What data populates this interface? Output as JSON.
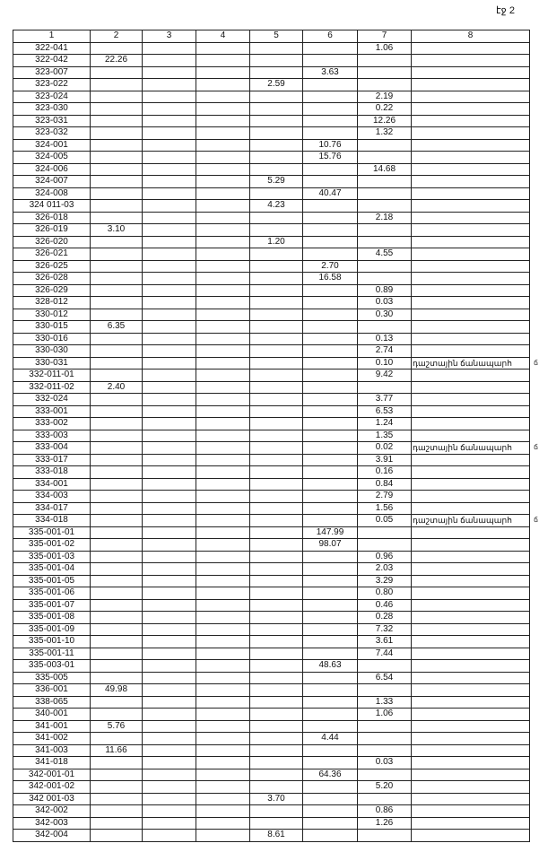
{
  "page_label": "էջ 2",
  "columns": [
    "1",
    "2",
    "3",
    "4",
    "5",
    "6",
    "7",
    "8"
  ],
  "note_text": "դաշտային ճանապարհ",
  "note_mark": "ճ",
  "rows": [
    [
      "322-041",
      "",
      "",
      "",
      "",
      "",
      "1.06",
      ""
    ],
    [
      "322-042",
      "22.26",
      "",
      "",
      "",
      "",
      "",
      ""
    ],
    [
      "323-007",
      "",
      "",
      "",
      "",
      "3.63",
      "",
      ""
    ],
    [
      "323-022",
      "",
      "",
      "",
      "2.59",
      "",
      "",
      ""
    ],
    [
      "323-024",
      "",
      "",
      "",
      "",
      "",
      "2.19",
      ""
    ],
    [
      "323-030",
      "",
      "",
      "",
      "",
      "",
      "0.22",
      ""
    ],
    [
      "323-031",
      "",
      "",
      "",
      "",
      "",
      "12.26",
      ""
    ],
    [
      "323-032",
      "",
      "",
      "",
      "",
      "",
      "1.32",
      ""
    ],
    [
      "324-001",
      "",
      "",
      "",
      "",
      "10.76",
      "",
      ""
    ],
    [
      "324-005",
      "",
      "",
      "",
      "",
      "15.76",
      "",
      ""
    ],
    [
      "324-006",
      "",
      "",
      "",
      "",
      "",
      "14.68",
      ""
    ],
    [
      "324-007",
      "",
      "",
      "",
      "5.29",
      "",
      "",
      ""
    ],
    [
      "324-008",
      "",
      "",
      "",
      "",
      "40.47",
      "",
      ""
    ],
    [
      "324 011-03",
      "",
      "",
      "",
      "4.23",
      "",
      "",
      ""
    ],
    [
      "326-018",
      "",
      "",
      "",
      "",
      "",
      "2.18",
      ""
    ],
    [
      "326-019",
      "3.10",
      "",
      "",
      "",
      "",
      "",
      ""
    ],
    [
      "326-020",
      "",
      "",
      "",
      "1.20",
      "",
      "",
      ""
    ],
    [
      "326-021",
      "",
      "",
      "",
      "",
      "",
      "4.55",
      ""
    ],
    [
      "326-025",
      "",
      "",
      "",
      "",
      "2.70",
      "",
      ""
    ],
    [
      "326-028",
      "",
      "",
      "",
      "",
      "16.58",
      "",
      ""
    ],
    [
      "326-029",
      "",
      "",
      "",
      "",
      "",
      "0.89",
      ""
    ],
    [
      "328-012",
      "",
      "",
      "",
      "",
      "",
      "0.03",
      ""
    ],
    [
      "330-012",
      "",
      "",
      "",
      "",
      "",
      "0.30",
      ""
    ],
    [
      "330-015",
      "6.35",
      "",
      "",
      "",
      "",
      "",
      ""
    ],
    [
      "330-016",
      "",
      "",
      "",
      "",
      "",
      "0.13",
      ""
    ],
    [
      "330-030",
      "",
      "",
      "",
      "",
      "",
      "2.74",
      ""
    ],
    [
      "330-031",
      "",
      "",
      "",
      "",
      "",
      "0.10",
      "դաշտային ճանապարհ"
    ],
    [
      "332-011-01",
      "",
      "",
      "",
      "",
      "",
      "9.42",
      ""
    ],
    [
      "332-011-02",
      "2.40",
      "",
      "",
      "",
      "",
      "",
      ""
    ],
    [
      "332-024",
      "",
      "",
      "",
      "",
      "",
      "3.77",
      ""
    ],
    [
      "333-001",
      "",
      "",
      "",
      "",
      "",
      "6.53",
      ""
    ],
    [
      "333-002",
      "",
      "",
      "",
      "",
      "",
      "1.24",
      ""
    ],
    [
      "333-003",
      "",
      "",
      "",
      "",
      "",
      "1.35",
      ""
    ],
    [
      "333-004",
      "",
      "",
      "",
      "",
      "",
      "0.02",
      "դաշտային ճանապարհ"
    ],
    [
      "333-017",
      "",
      "",
      "",
      "",
      "",
      "3.91",
      ""
    ],
    [
      "333-018",
      "",
      "",
      "",
      "",
      "",
      "0.16",
      ""
    ],
    [
      "334-001",
      "",
      "",
      "",
      "",
      "",
      "0.84",
      ""
    ],
    [
      "334-003",
      "",
      "",
      "",
      "",
      "",
      "2.79",
      ""
    ],
    [
      "334-017",
      "",
      "",
      "",
      "",
      "",
      "1.56",
      ""
    ],
    [
      "334-018",
      "",
      "",
      "",
      "",
      "",
      "0.05",
      "դաշտային ճանապարհ"
    ],
    [
      "335-001-01",
      "",
      "",
      "",
      "",
      "147.99",
      "",
      ""
    ],
    [
      "335-001-02",
      "",
      "",
      "",
      "",
      "98.07",
      "",
      ""
    ],
    [
      "335-001-03",
      "",
      "",
      "",
      "",
      "",
      "0.96",
      ""
    ],
    [
      "335-001-04",
      "",
      "",
      "",
      "",
      "",
      "2.03",
      ""
    ],
    [
      "335-001-05",
      "",
      "",
      "",
      "",
      "",
      "3.29",
      ""
    ],
    [
      "335-001-06",
      "",
      "",
      "",
      "",
      "",
      "0.80",
      ""
    ],
    [
      "335-001-07",
      "",
      "",
      "",
      "",
      "",
      "0.46",
      ""
    ],
    [
      "335-001-08",
      "",
      "",
      "",
      "",
      "",
      "0.28",
      ""
    ],
    [
      "335-001-09",
      "",
      "",
      "",
      "",
      "",
      "7.32",
      ""
    ],
    [
      "335-001-10",
      "",
      "",
      "",
      "",
      "",
      "3.61",
      ""
    ],
    [
      "335-001-11",
      "",
      "",
      "",
      "",
      "",
      "7.44",
      ""
    ],
    [
      "335-003-01",
      "",
      "",
      "",
      "",
      "48.63",
      "",
      ""
    ],
    [
      "335-005",
      "",
      "",
      "",
      "",
      "",
      "6.54",
      ""
    ],
    [
      "336-001",
      "49.98",
      "",
      "",
      "",
      "",
      "",
      ""
    ],
    [
      "338-065",
      "",
      "",
      "",
      "",
      "",
      "1.33",
      ""
    ],
    [
      "340-001",
      "",
      "",
      "",
      "",
      "",
      "1.06",
      ""
    ],
    [
      "341-001",
      "5.76",
      "",
      "",
      "",
      "",
      "",
      ""
    ],
    [
      "341-002",
      "",
      "",
      "",
      "",
      "4.44",
      "",
      ""
    ],
    [
      "341-003",
      "11.66",
      "",
      "",
      "",
      "",
      "",
      ""
    ],
    [
      "341-018",
      "",
      "",
      "",
      "",
      "",
      "0.03",
      ""
    ],
    [
      "342-001-01",
      "",
      "",
      "",
      "",
      "64.36",
      "",
      ""
    ],
    [
      "342-001-02",
      "",
      "",
      "",
      "",
      "",
      "5.20",
      ""
    ],
    [
      "342 001-03",
      "",
      "",
      "",
      "3.70",
      "",
      "",
      ""
    ],
    [
      "342-002",
      "",
      "",
      "",
      "",
      "",
      "0.86",
      ""
    ],
    [
      "342-003",
      "",
      "",
      "",
      "",
      "",
      "1.26",
      ""
    ],
    [
      "342-004",
      "",
      "",
      "",
      "8.61",
      "",
      "",
      ""
    ]
  ]
}
